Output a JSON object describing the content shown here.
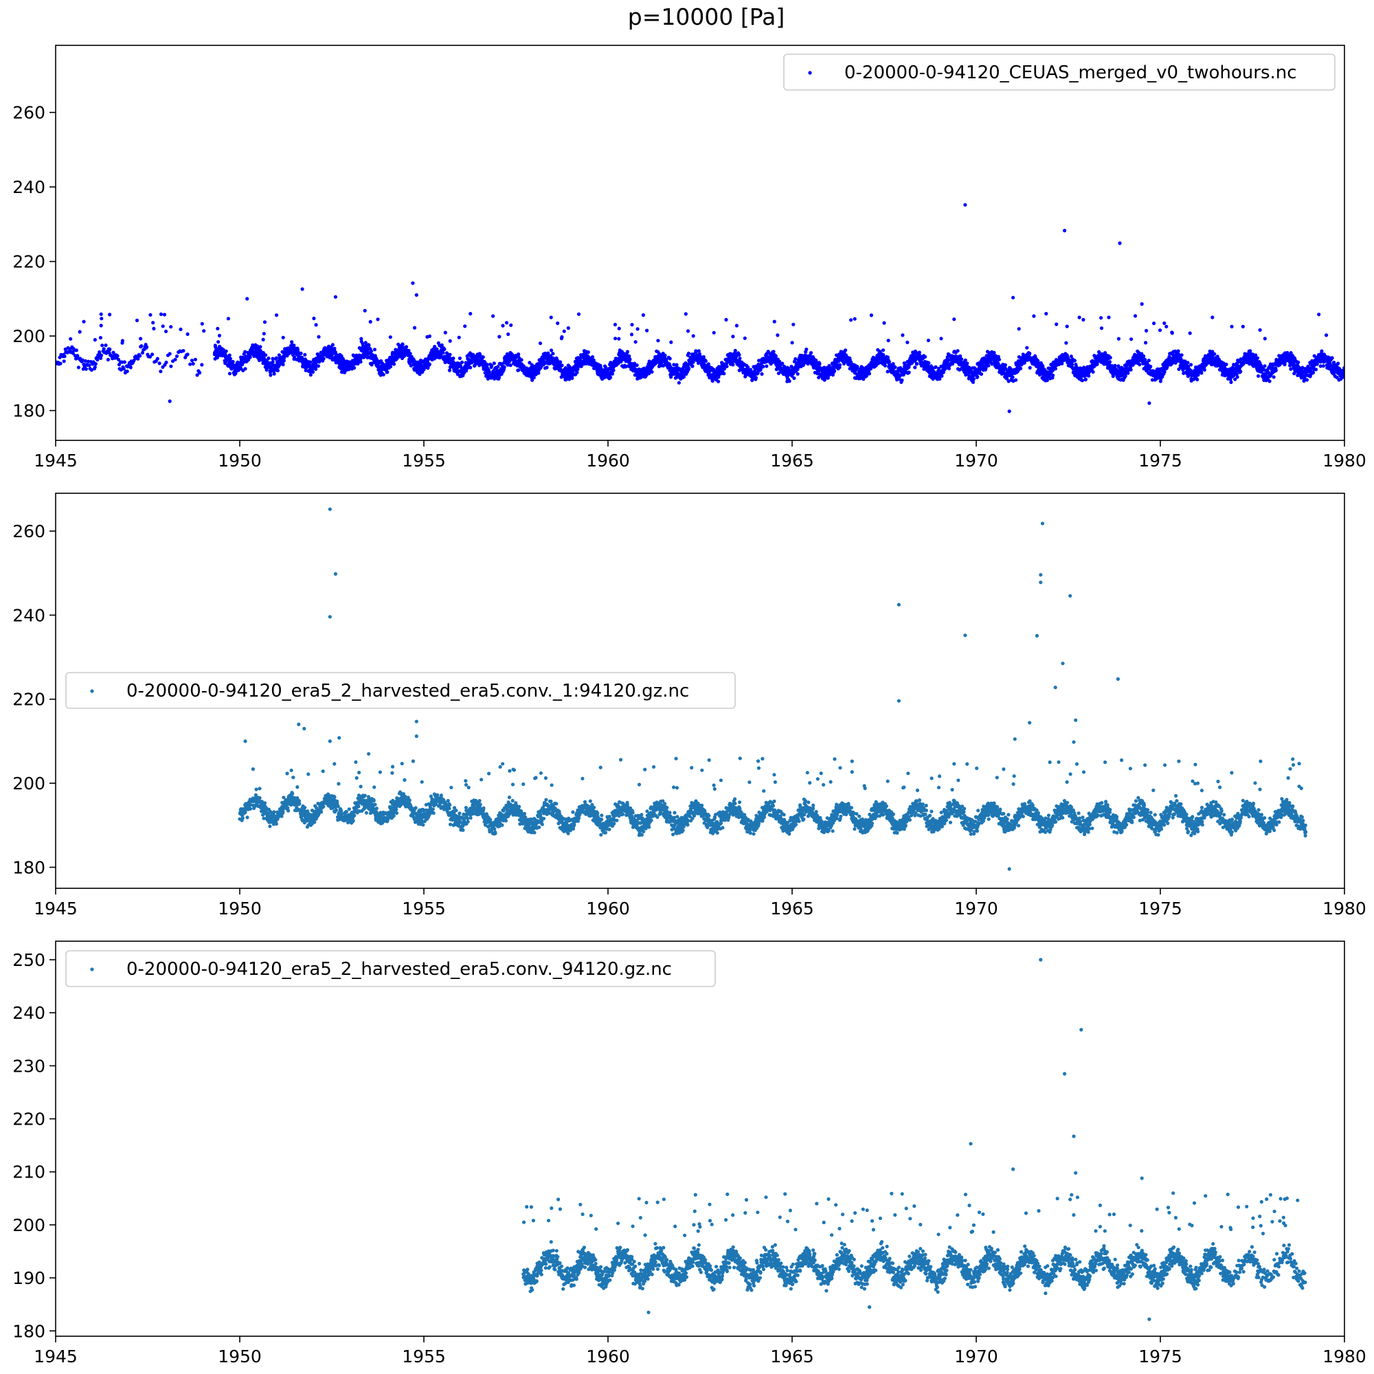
{
  "chart_data": [
    {
      "type": "scatter",
      "title": "p=10000 [Pa]",
      "legend": {
        "placement": "upper right",
        "label": "0-20000-0-94120_CEUAS_merged_v0_twohours.nc"
      },
      "color": "#0000ff",
      "xlim": [
        1945,
        1980
      ],
      "ylim": [
        172,
        278
      ],
      "x_ticks": [
        "1945",
        "1950",
        "1955",
        "1960",
        "1965",
        "1970",
        "1975",
        "1980"
      ],
      "y_ticks": [
        "180",
        "200",
        "220",
        "240",
        "260"
      ],
      "data_span": [
        1945.0,
        1980.0
      ],
      "sparse_until": 1949.3,
      "baseline": 192,
      "outliers": [
        [
          1950.2,
          210
        ],
        [
          1951.7,
          212.6
        ],
        [
          1952.6,
          210.5
        ],
        [
          1954.7,
          214.2
        ],
        [
          1954.8,
          211
        ],
        [
          1953.4,
          206.8
        ],
        [
          1969.7,
          235.2
        ],
        [
          1972.4,
          228.3
        ],
        [
          1973.9,
          224.9
        ],
        [
          1971.0,
          210.3
        ],
        [
          1974.5,
          208.6
        ],
        [
          1969.4,
          204.5
        ],
        [
          1971.9,
          206
        ],
        [
          1972.8,
          205
        ],
        [
          1973.6,
          205
        ],
        [
          1970.9,
          179.8
        ],
        [
          1974.7,
          182
        ],
        [
          1948.1,
          182.5
        ],
        [
          1949.4,
          202
        ],
        [
          1967.5,
          203.5
        ]
      ]
    },
    {
      "type": "scatter",
      "legend": {
        "placement": "center left",
        "label": "0-20000-0-94120_era5_2_harvested_era5.conv._1:94120.gz.nc"
      },
      "color": "#1f77b4",
      "xlim": [
        1945,
        1980
      ],
      "ylim": [
        175,
        269
      ],
      "x_ticks": [
        "1945",
        "1950",
        "1955",
        "1960",
        "1965",
        "1970",
        "1975",
        "1980"
      ],
      "y_ticks": [
        "180",
        "200",
        "220",
        "240",
        "260"
      ],
      "data_span": [
        1950.0,
        1978.95
      ],
      "baseline": 192,
      "outliers": [
        [
          1952.45,
          265.2
        ],
        [
          1952.6,
          249.8
        ],
        [
          1952.45,
          239.6
        ],
        [
          1951.6,
          214
        ],
        [
          1951.75,
          213
        ],
        [
          1952.45,
          210
        ],
        [
          1952.7,
          210.8
        ],
        [
          1954.8,
          214.7
        ],
        [
          1954.8,
          211.2
        ],
        [
          1950.15,
          210
        ],
        [
          1953.5,
          207
        ],
        [
          1967.9,
          242.5
        ],
        [
          1967.9,
          219.6
        ],
        [
          1969.7,
          235.2
        ],
        [
          1971.8,
          261.8
        ],
        [
          1971.75,
          249.6
        ],
        [
          1971.75,
          247.8
        ],
        [
          1971.65,
          235.1
        ],
        [
          1972.55,
          244.6
        ],
        [
          1972.35,
          228.5
        ],
        [
          1972.15,
          222.8
        ],
        [
          1973.85,
          224.8
        ],
        [
          1972.7,
          215
        ],
        [
          1971.05,
          210.5
        ],
        [
          1971.45,
          214.4
        ],
        [
          1972.65,
          209.8
        ],
        [
          1970.9,
          179.6
        ],
        [
          1969.4,
          204.6
        ],
        [
          1972.0,
          205
        ],
        [
          1973.5,
          205
        ]
      ]
    },
    {
      "type": "scatter",
      "legend": {
        "placement": "upper left",
        "label": "0-20000-0-94120_era5_2_harvested_era5.conv._94120.gz.nc"
      },
      "color": "#1f77b4",
      "xlim": [
        1945,
        1980
      ],
      "ylim": [
        179,
        253.5
      ],
      "x_ticks": [
        "1945",
        "1950",
        "1955",
        "1960",
        "1965",
        "1970",
        "1975",
        "1980"
      ],
      "y_ticks": [
        "180",
        "190",
        "200",
        "210",
        "220",
        "230",
        "240",
        "250"
      ],
      "data_span": [
        1957.7,
        1978.95
      ],
      "thinning_after": 1976.9,
      "baseline": 192,
      "outliers": [
        [
          1971.75,
          250
        ],
        [
          1972.85,
          236.8
        ],
        [
          1972.4,
          228.5
        ],
        [
          1972.65,
          216.7
        ],
        [
          1969.85,
          215.3
        ],
        [
          1971.0,
          210.5
        ],
        [
          1972.7,
          209.8
        ],
        [
          1974.5,
          208.8
        ],
        [
          1972.55,
          204.8
        ],
        [
          1972.75,
          205.2
        ],
        [
          1974.7,
          182.2
        ],
        [
          1961.1,
          183.5
        ],
        [
          1967.1,
          184.5
        ],
        [
          1977.7,
          201.6
        ],
        [
          1968.1,
          203.1
        ]
      ]
    }
  ]
}
